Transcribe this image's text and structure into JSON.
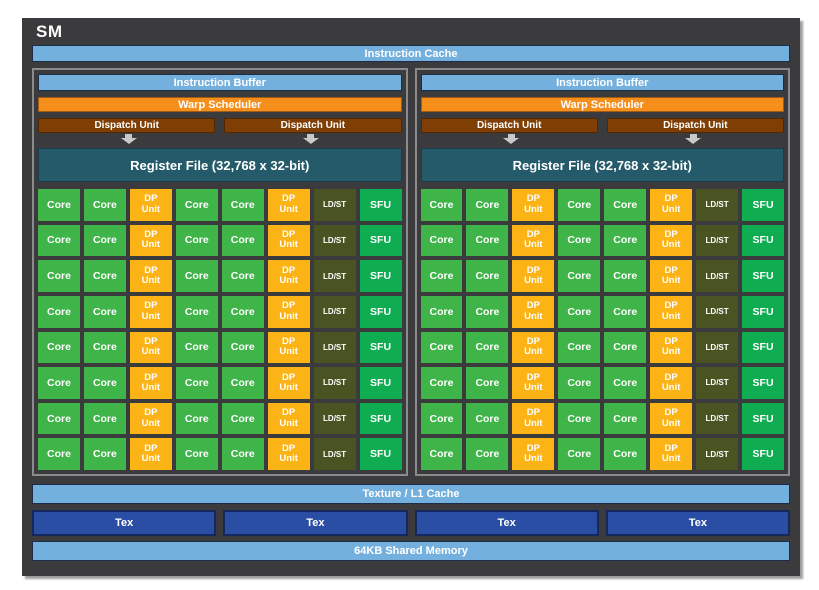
{
  "title": "SM",
  "instruction_cache": "Instruction Cache",
  "partitions": [
    {
      "instruction_buffer": "Instruction Buffer",
      "warp_scheduler": "Warp Scheduler",
      "dispatch_units": [
        "Dispatch Unit",
        "Dispatch Unit"
      ],
      "register_file": "Register File (32,768 x 32-bit)",
      "grid": {
        "rows": 8,
        "row_pattern": [
          {
            "type": "core",
            "label": "Core"
          },
          {
            "type": "core",
            "label": "Core"
          },
          {
            "type": "dp",
            "label": "DP Unit"
          },
          {
            "type": "core",
            "label": "Core"
          },
          {
            "type": "core",
            "label": "Core"
          },
          {
            "type": "dp",
            "label": "DP Unit"
          },
          {
            "type": "ldst",
            "label": "LD/ST"
          },
          {
            "type": "sfu",
            "label": "SFU"
          }
        ]
      }
    },
    {
      "instruction_buffer": "Instruction Buffer",
      "warp_scheduler": "Warp Scheduler",
      "dispatch_units": [
        "Dispatch Unit",
        "Dispatch Unit"
      ],
      "register_file": "Register File (32,768 x 32-bit)",
      "grid": {
        "rows": 8,
        "row_pattern": [
          {
            "type": "core",
            "label": "Core"
          },
          {
            "type": "core",
            "label": "Core"
          },
          {
            "type": "dp",
            "label": "DP Unit"
          },
          {
            "type": "core",
            "label": "Core"
          },
          {
            "type": "core",
            "label": "Core"
          },
          {
            "type": "dp",
            "label": "DP Unit"
          },
          {
            "type": "ldst",
            "label": "LD/ST"
          },
          {
            "type": "sfu",
            "label": "SFU"
          }
        ]
      }
    }
  ],
  "texture_l1_cache": "Texture / L1 Cache",
  "tex_units": [
    "Tex",
    "Tex",
    "Tex",
    "Tex"
  ],
  "shared_memory": "64KB Shared Memory",
  "colors": {
    "box_background": "#3b3b3d",
    "light_blue_bar": "#74b0dd",
    "warp_scheduler_orange": "#f68e1c",
    "dispatch_unit_brown": "#7e3e04",
    "register_file_teal": "#245a69",
    "core_green": "#3fb449",
    "dp_unit_amber": "#fcb316",
    "ldst_olive": "#4a5423",
    "sfu_green": "#0fac52",
    "tex_blue": "#2b4ea5",
    "partition_border_gray": "#8b8b8b"
  }
}
